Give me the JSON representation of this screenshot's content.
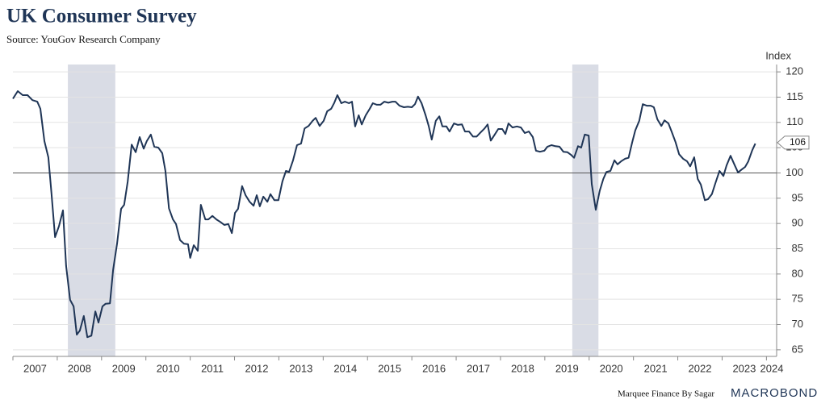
{
  "chart_data": {
    "type": "line",
    "title": "UK Consumer Survey",
    "subtitle": "Source: YouGov Research Company",
    "y_axis_label": "Index",
    "footer": "Marquee Finance By Sagar",
    "logo": "MACROBOND",
    "color": "#1f3556",
    "shade_color": "#d9dce5",
    "shaded_ranges": [
      [
        2008.24,
        2009.31
      ],
      [
        2019.62,
        2020.21
      ]
    ],
    "reference_line": 100,
    "last_value": 106,
    "grid": true,
    "xlim": [
      2007,
      2024.23
    ],
    "ylim": [
      63.7,
      120.5
    ],
    "xticks": [
      2007,
      2008,
      2009,
      2010,
      2011,
      2012,
      2013,
      2014,
      2015,
      2016,
      2017,
      2018,
      2019,
      2020,
      2021,
      2022,
      2023,
      2024
    ],
    "yticks": [
      65,
      70,
      75,
      80,
      85,
      90,
      95,
      100,
      105,
      110,
      115,
      120
    ],
    "x": [
      2007.0,
      2007.11,
      2007.22,
      2007.33,
      2007.44,
      2007.55,
      2007.62,
      2007.71,
      2007.8,
      2007.87,
      2007.95,
      2008.04,
      2008.13,
      2008.2,
      2008.29,
      2008.37,
      2008.44,
      2008.51,
      2008.6,
      2008.68,
      2008.77,
      2008.86,
      2008.93,
      2009.02,
      2009.09,
      2009.19,
      2009.26,
      2009.35,
      2009.44,
      2009.51,
      2009.59,
      2009.68,
      2009.77,
      2009.86,
      2009.95,
      2010.02,
      2010.11,
      2010.19,
      2010.28,
      2010.37,
      2010.44,
      2010.52,
      2010.61,
      2010.68,
      2010.77,
      2010.86,
      2010.95,
      2011.0,
      2011.08,
      2011.17,
      2011.24,
      2011.34,
      2011.41,
      2011.5,
      2011.59,
      2011.68,
      2011.77,
      2011.86,
      2011.94,
      2012.01,
      2012.08,
      2012.17,
      2012.25,
      2012.34,
      2012.43,
      2012.5,
      2012.57,
      2012.65,
      2012.74,
      2012.81,
      2012.9,
      2012.99,
      2013.08,
      2013.16,
      2013.23,
      2013.32,
      2013.41,
      2013.5,
      2013.58,
      2013.67,
      2013.76,
      2013.83,
      2013.92,
      2014.01,
      2014.09,
      2014.18,
      2014.25,
      2014.32,
      2014.41,
      2014.49,
      2014.58,
      2014.65,
      2014.72,
      2014.8,
      2014.87,
      2014.96,
      2015.05,
      2015.12,
      2015.21,
      2015.29,
      2015.38,
      2015.47,
      2015.56,
      2015.63,
      2015.72,
      2015.82,
      2015.91,
      2016.0,
      2016.07,
      2016.14,
      2016.22,
      2016.31,
      2016.38,
      2016.45,
      2016.54,
      2016.62,
      2016.69,
      2016.78,
      2016.85,
      2016.95,
      2017.04,
      2017.13,
      2017.2,
      2017.29,
      2017.38,
      2017.46,
      2017.55,
      2017.64,
      2017.71,
      2017.78,
      2017.87,
      2017.95,
      2018.04,
      2018.11,
      2018.18,
      2018.27,
      2018.37,
      2018.46,
      2018.55,
      2018.64,
      2018.73,
      2018.8,
      2018.89,
      2018.99,
      2019.06,
      2019.15,
      2019.24,
      2019.33,
      2019.42,
      2019.51,
      2019.59,
      2019.66,
      2019.75,
      2019.82,
      2019.9,
      2019.99,
      2020.06,
      2020.15,
      2020.24,
      2020.32,
      2020.39,
      2020.48,
      2020.57,
      2020.64,
      2020.72,
      2020.81,
      2020.89,
      2020.97,
      2021.04,
      2021.13,
      2021.21,
      2021.3,
      2021.39,
      2021.46,
      2021.54,
      2021.63,
      2021.7,
      2021.79,
      2021.86,
      2021.95,
      2022.03,
      2022.12,
      2022.21,
      2022.28,
      2022.37,
      2022.45,
      2022.52,
      2022.61,
      2022.68,
      2022.77,
      2022.85,
      2022.94,
      2023.03,
      2023.1,
      2023.19,
      2023.27,
      2023.36,
      2023.43,
      2023.52,
      2023.59,
      2023.68,
      2023.75
    ],
    "values": [
      114.7,
      116.2,
      115.4,
      115.4,
      114.4,
      114.1,
      112.7,
      106.3,
      103.1,
      95.9,
      87.3,
      89.5,
      92.6,
      81.6,
      74.9,
      73.6,
      68.0,
      68.8,
      71.7,
      67.5,
      67.8,
      72.6,
      70.4,
      73.6,
      74.1,
      74.2,
      80.8,
      86.0,
      92.9,
      93.7,
      98.3,
      105.6,
      104.1,
      107.1,
      104.8,
      106.3,
      107.6,
      105.2,
      105.0,
      103.9,
      100.4,
      93.0,
      90.8,
      89.9,
      86.7,
      86.0,
      85.9,
      83.2,
      85.7,
      84.6,
      93.7,
      90.8,
      90.8,
      91.5,
      90.8,
      90.3,
      89.7,
      89.9,
      88.1,
      92.1,
      92.9,
      97.4,
      95.6,
      94.3,
      93.5,
      95.6,
      93.4,
      95.3,
      94.3,
      95.8,
      94.6,
      94.6,
      98.3,
      100.4,
      100.2,
      102.5,
      105.5,
      105.8,
      108.8,
      109.3,
      110.3,
      110.9,
      109.3,
      110.3,
      112.2,
      112.7,
      113.9,
      115.4,
      113.8,
      114.1,
      113.8,
      114.1,
      109.2,
      111.4,
      109.6,
      111.4,
      112.7,
      113.8,
      113.5,
      113.5,
      114.1,
      113.9,
      114.1,
      114.1,
      113.3,
      113.0,
      113.1,
      113.0,
      113.6,
      115.1,
      113.8,
      111.4,
      109.3,
      106.6,
      110.3,
      111.2,
      109.2,
      109.2,
      108.2,
      109.8,
      109.5,
      109.6,
      108.2,
      108.2,
      107.2,
      107.2,
      108.0,
      108.8,
      109.6,
      106.4,
      107.6,
      108.7,
      108.7,
      107.7,
      109.8,
      109.0,
      109.2,
      109.0,
      107.9,
      108.2,
      107.1,
      104.4,
      104.2,
      104.4,
      105.2,
      105.5,
      105.3,
      105.2,
      104.2,
      104.1,
      103.6,
      103.0,
      105.3,
      105.0,
      107.6,
      107.4,
      97.8,
      92.7,
      96.5,
      98.8,
      100.2,
      100.4,
      102.5,
      101.7,
      102.3,
      102.8,
      103.0,
      106.0,
      108.4,
      110.3,
      113.6,
      113.3,
      113.3,
      113.0,
      110.6,
      109.3,
      110.4,
      109.8,
      108.2,
      106.1,
      103.7,
      102.8,
      102.3,
      101.3,
      103.1,
      98.8,
      97.7,
      94.6,
      94.8,
      95.8,
      98.0,
      100.4,
      99.4,
      101.5,
      103.4,
      101.8,
      100.1,
      100.6,
      101.2,
      102.3,
      104.5,
      105.8
    ]
  }
}
